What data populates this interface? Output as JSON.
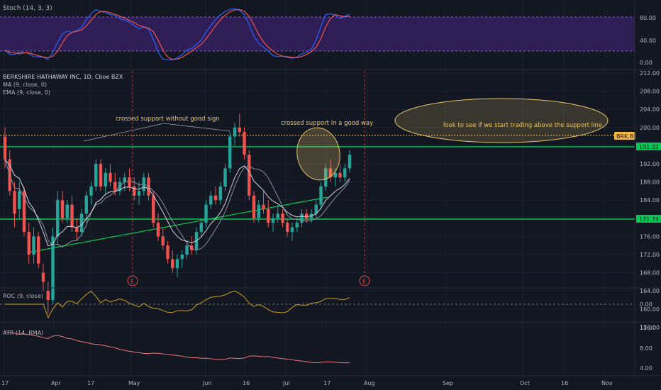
{
  "colors": {
    "background": "#131722",
    "grid": "#1f2330",
    "axis_text": "#b2b5be",
    "up_candle": "#26a69a",
    "down_candle": "#ef5350",
    "stoch_band": "#4a2a7a",
    "stoch_k": "#2962ff",
    "stoch_d": "#ef5350",
    "ma": "#8c8fa0",
    "ema": "#d1d4dc",
    "roc": "#c8a020",
    "atr": "#e8787a",
    "support": "#00c853",
    "trendline": "#00c853",
    "current_price_line": "#f5b942",
    "ellipse": "#e8c76a",
    "annotation": "#e8c76a",
    "price_tag": "#f5b942",
    "earnings_marker": "#e54b4b"
  },
  "stoch": {
    "title": "Stoch (14, 3, 3)",
    "axis": [
      "80.00",
      "40.00",
      "0.00"
    ]
  },
  "main": {
    "title": "BERKSHIRE HATHAWAY INC, 1D, Cboe BZX",
    "ma_label": "MA (9, close, 0)",
    "ema_label": "EMA (9, close, 0)",
    "axis": [
      "212.00",
      "208.00",
      "204.00",
      "200.00",
      "196.00",
      "192.00",
      "188.00",
      "184.00",
      "180.00",
      "176.00",
      "172.00",
      "168.00",
      "164.00",
      "160.00",
      "156.00"
    ],
    "ticker_tag": "BRK.B",
    "support_upper_tag": "191.32",
    "support_lower_tag": "171.74",
    "annotations": {
      "left": "crossed support without good sign",
      "middle": "crossed support in a good way",
      "right": "look to see if we start trading above the support line"
    },
    "earnings_marker": "E"
  },
  "roc": {
    "title": "ROC (9, close)",
    "axis": [
      "0.00"
    ]
  },
  "atr": {
    "title": "ATR (14, RMA)",
    "axis": [
      "12.00",
      "8.00",
      "4.00"
    ]
  },
  "x_axis": [
    "17",
    "Apr",
    "17",
    "May",
    "Jun",
    "16",
    "Jul",
    "17",
    "Aug",
    "Sep",
    "Oct",
    "16",
    "Nov"
  ],
  "chart_data": {
    "type": "candlestick",
    "support_levels": [
      191.32,
      171.74
    ],
    "current_price_line": 194.6,
    "candles_ohlc": [
      [
        198,
        200,
        191,
        193
      ],
      [
        193,
        195,
        185,
        186
      ],
      [
        186,
        188,
        178,
        181
      ],
      [
        182,
        188,
        180,
        186
      ],
      [
        186,
        187,
        176,
        177
      ],
      [
        177,
        179,
        170,
        172
      ],
      [
        172,
        178,
        170,
        176
      ],
      [
        176,
        177,
        169,
        170
      ],
      [
        168,
        170,
        164,
        166
      ],
      [
        164,
        166,
        159,
        162
      ],
      [
        162,
        178,
        161,
        176
      ],
      [
        176,
        186,
        174,
        184
      ],
      [
        184,
        186,
        179,
        180
      ],
      [
        180,
        184,
        179,
        183
      ],
      [
        183,
        185,
        177,
        178
      ],
      [
        178,
        180,
        175,
        177
      ],
      [
        177,
        182,
        176,
        181
      ],
      [
        181,
        186,
        179,
        185
      ],
      [
        185,
        188,
        183,
        187
      ],
      [
        187,
        193,
        186,
        192
      ],
      [
        192,
        193,
        186,
        187
      ],
      [
        187,
        191,
        185,
        190
      ],
      [
        190,
        192,
        187,
        188
      ],
      [
        188,
        190,
        185,
        186
      ],
      [
        186,
        189,
        185,
        188
      ],
      [
        188,
        190,
        186,
        189
      ],
      [
        189,
        191,
        186,
        187
      ],
      [
        187,
        189,
        184,
        185
      ],
      [
        185,
        188,
        183,
        186
      ],
      [
        186,
        190,
        185,
        189
      ],
      [
        189,
        190,
        184,
        185
      ],
      [
        185,
        186,
        178,
        179
      ],
      [
        179,
        181,
        175,
        176
      ],
      [
        176,
        178,
        173,
        174
      ],
      [
        174,
        175,
        170,
        171
      ],
      [
        171,
        173,
        168,
        169
      ],
      [
        169,
        172,
        167,
        171
      ],
      [
        171,
        173,
        169,
        172
      ],
      [
        172,
        175,
        171,
        174
      ],
      [
        174,
        176,
        172,
        173
      ],
      [
        173,
        178,
        172,
        177
      ],
      [
        177,
        180,
        176,
        179
      ],
      [
        179,
        184,
        178,
        183
      ],
      [
        183,
        186,
        182,
        185
      ],
      [
        185,
        187,
        183,
        184
      ],
      [
        184,
        188,
        183,
        187
      ],
      [
        187,
        192,
        186,
        191
      ],
      [
        191,
        199,
        190,
        198
      ],
      [
        198,
        201,
        196,
        200
      ],
      [
        200,
        203,
        198,
        199
      ],
      [
        199,
        200,
        193,
        194
      ],
      [
        194,
        195,
        184,
        185
      ],
      [
        185,
        186,
        179,
        180
      ],
      [
        180,
        184,
        179,
        183
      ],
      [
        183,
        186,
        181,
        182
      ],
      [
        182,
        184,
        178,
        179
      ],
      [
        179,
        181,
        177,
        180
      ],
      [
        180,
        183,
        179,
        181
      ],
      [
        181,
        182,
        178,
        179
      ],
      [
        179,
        180,
        176,
        177
      ],
      [
        177,
        179,
        175,
        178
      ],
      [
        178,
        180,
        177,
        179
      ],
      [
        179,
        182,
        178,
        181
      ],
      [
        181,
        182,
        179,
        180
      ],
      [
        180,
        182,
        179,
        181
      ],
      [
        181,
        184,
        180,
        183
      ],
      [
        183,
        188,
        182,
        187
      ],
      [
        187,
        192,
        186,
        191
      ],
      [
        191,
        193,
        188,
        189
      ],
      [
        189,
        191,
        187,
        190
      ],
      [
        190,
        192,
        188,
        189
      ],
      [
        189,
        192,
        188,
        191
      ],
      [
        191,
        195,
        190,
        194
      ]
    ]
  }
}
